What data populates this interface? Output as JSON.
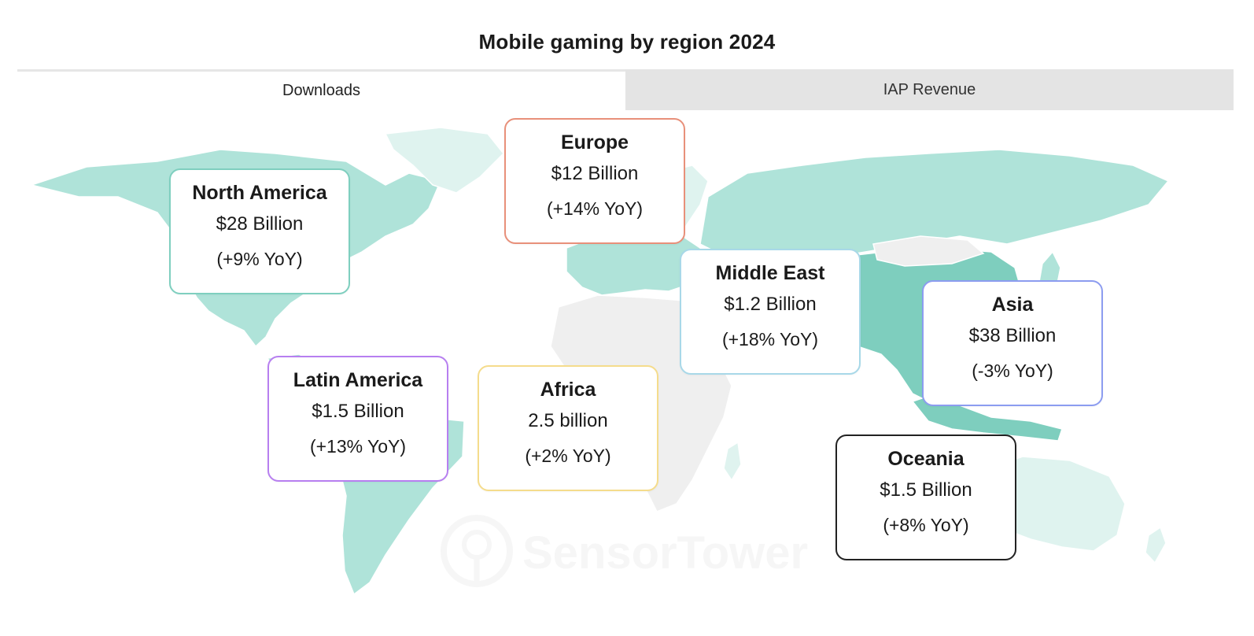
{
  "title": "Mobile gaming by region 2024",
  "tabs": [
    {
      "label": "Downloads",
      "active": true
    },
    {
      "label": "IAP Revenue",
      "active": false
    }
  ],
  "regions": [
    {
      "name": "North America",
      "value": "$28 Billion",
      "yoy": "(+9% YoY)",
      "border_color": "#7fcfbf"
    },
    {
      "name": "Europe",
      "value": "$12 Billion",
      "yoy": "(+14% YoY)",
      "border_color": "#e8907a"
    },
    {
      "name": "Middle East",
      "value": "$1.2 Billion",
      "yoy": "(+18% YoY)",
      "border_color": "#a8d8e8"
    },
    {
      "name": "Asia",
      "value": "$38 Billion",
      "yoy": "(-3% YoY)",
      "border_color": "#8c9cf0"
    },
    {
      "name": "Latin America",
      "value": "$1.5 Billion",
      "yoy": "(+13% YoY)",
      "border_color": "#b77ff0"
    },
    {
      "name": "Africa",
      "value": "2.5 billion",
      "yoy": "(+2% YoY)",
      "border_color": "#f5dc8c"
    },
    {
      "name": "Oceania",
      "value": "$1.5 Billion",
      "yoy": "(+8% YoY)",
      "border_color": "#222222"
    }
  ],
  "map_colors": {
    "light": "#dff3ef",
    "medium": "#afe3d9",
    "dark": "#7ecebe",
    "neutral": "#efefef"
  },
  "watermark": "SensorTower"
}
